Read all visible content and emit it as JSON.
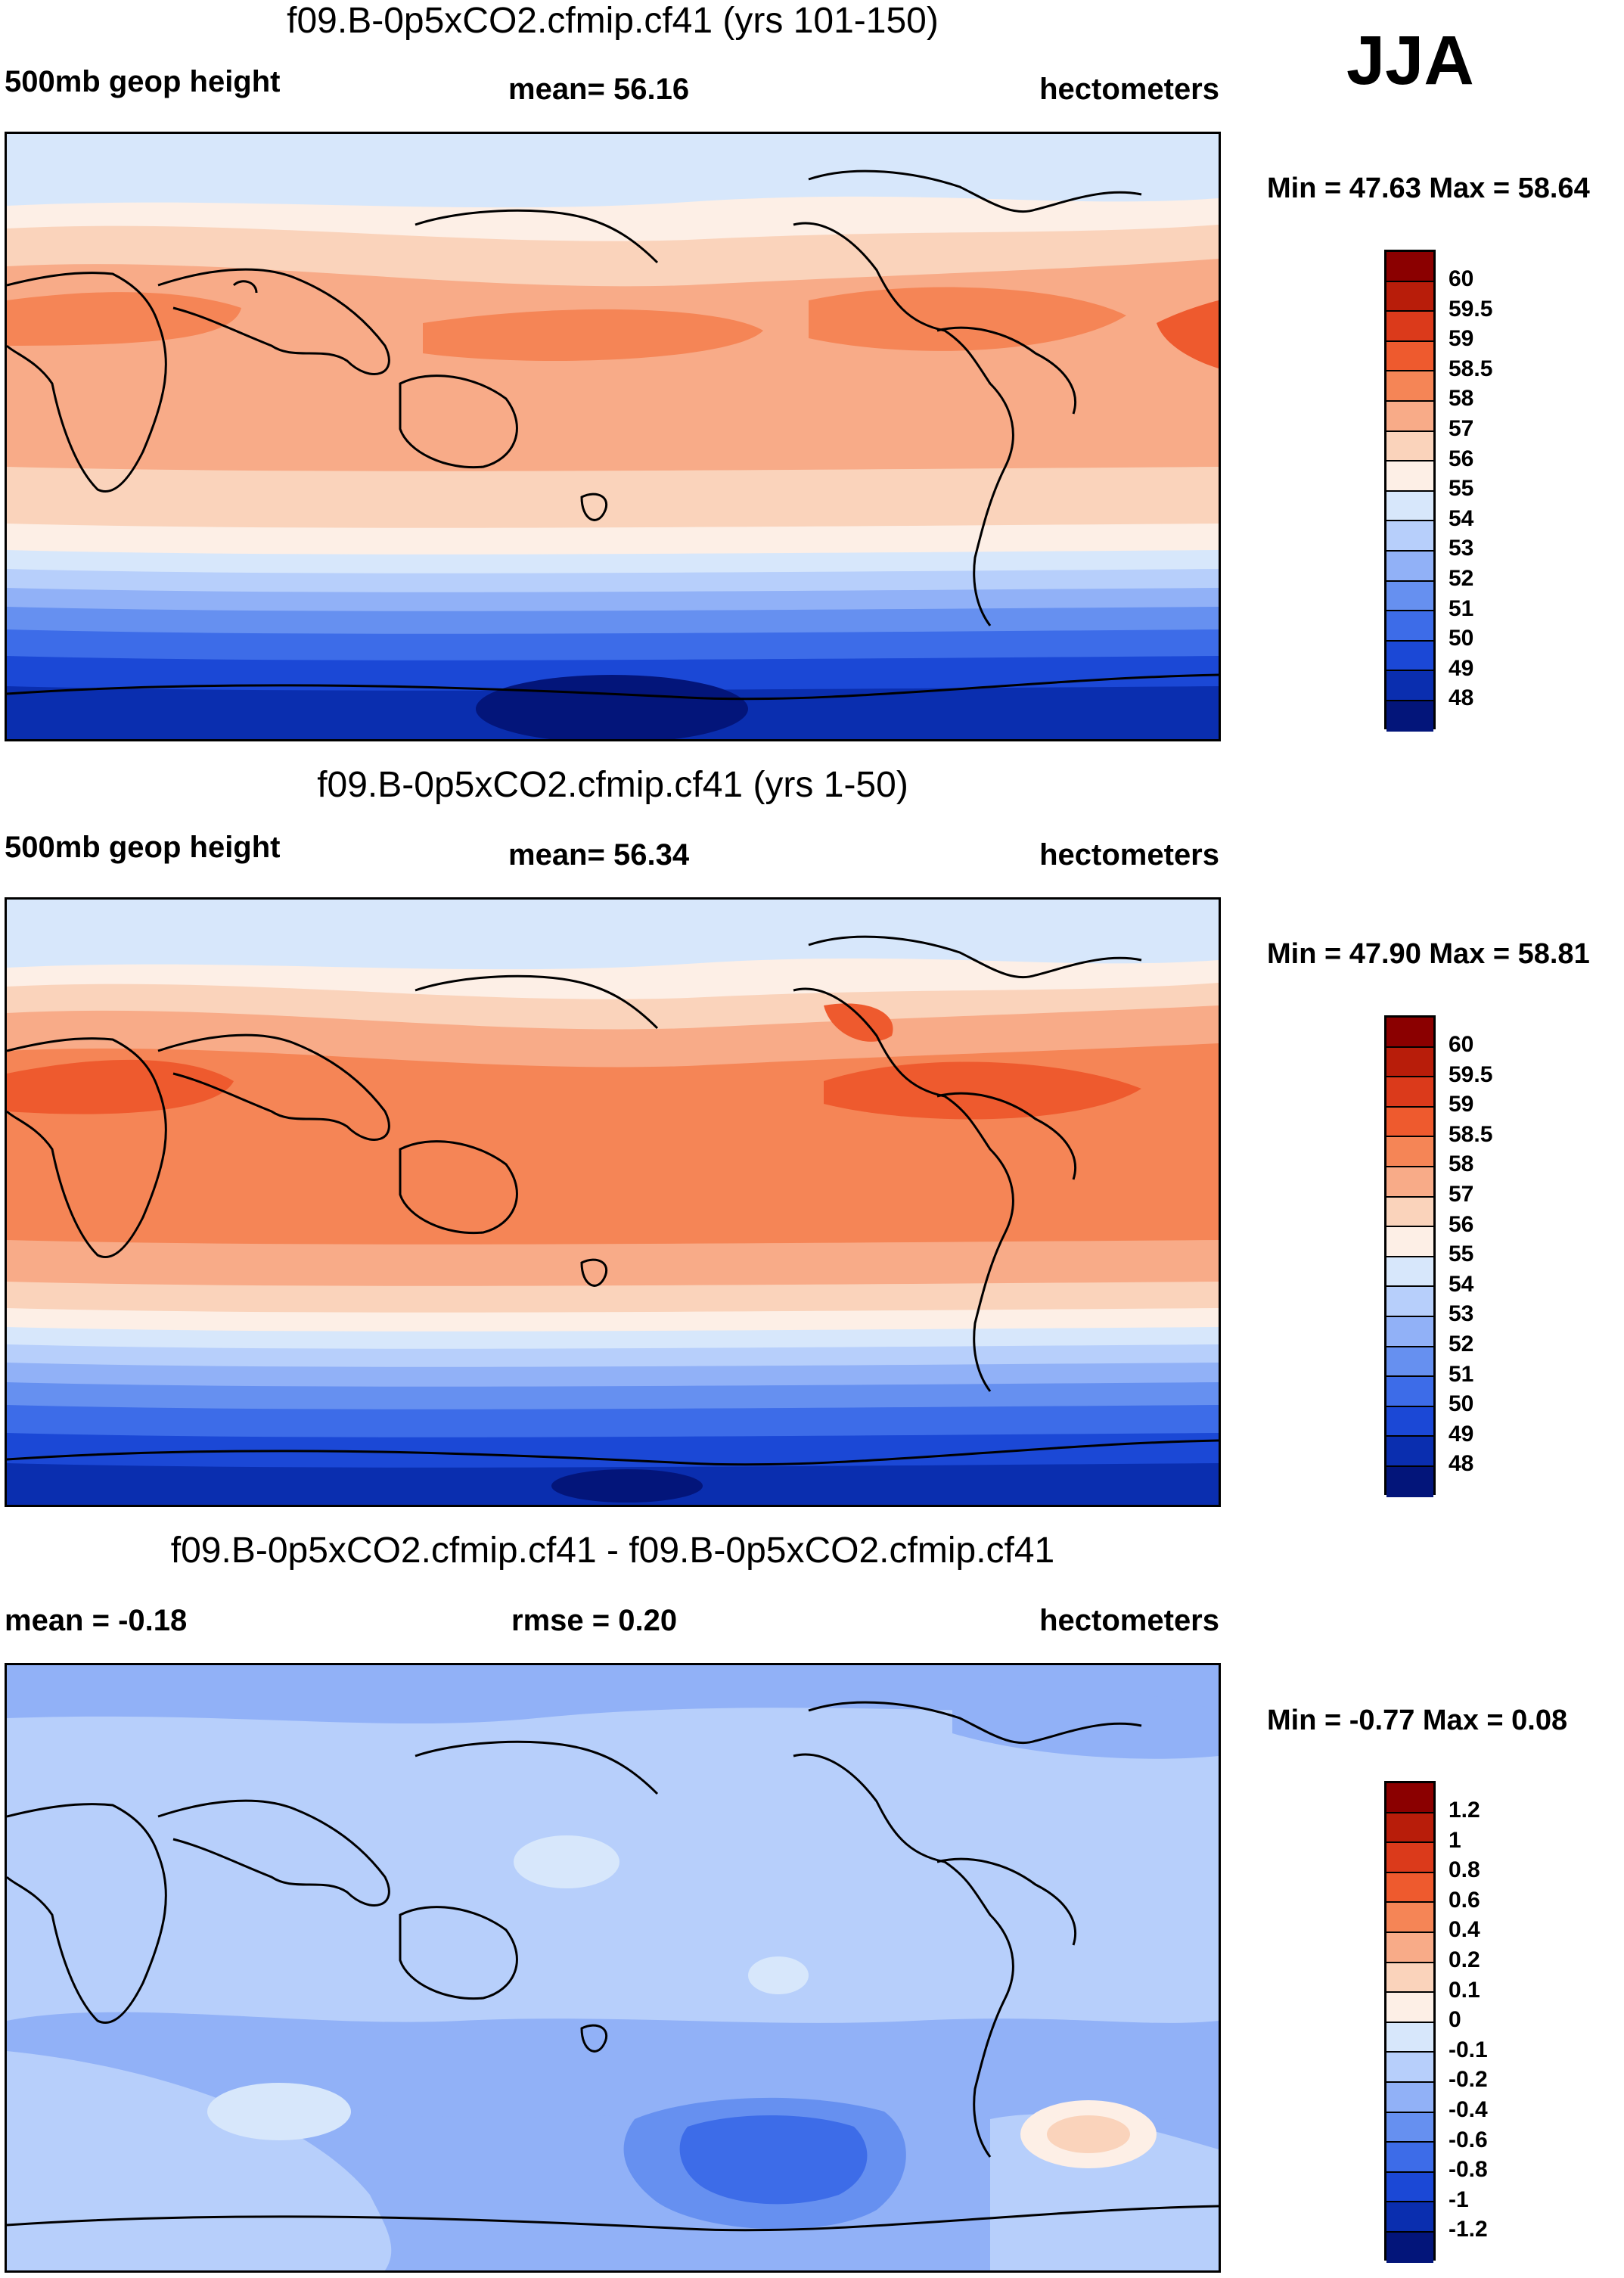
{
  "season": "JJA",
  "panels": [
    {
      "title": "f09.B-0p5xCO2.cfmip.cf41 (yrs 101-150)",
      "left_label": "500mb geop height",
      "center_label": "mean=  56.16",
      "right_label": "hectometers",
      "minmax": "Min =  47.63 Max =  58.64",
      "levels": [
        "60",
        "59.5",
        "59",
        "58.5",
        "58",
        "57",
        "56",
        "55",
        "54",
        "53",
        "52",
        "51",
        "50",
        "49",
        "48"
      ],
      "colors": [
        "#8b0000",
        "#b81d0a",
        "#db3a1b",
        "#ee5a2e",
        "#f58556",
        "#f8ab88",
        "#fad3bb",
        "#fdefe6",
        "#d7e7fb",
        "#b7cffb",
        "#91b1f7",
        "#6690f0",
        "#3d6ce8",
        "#1b48d6",
        "#0a2eaf",
        "#03157a"
      ]
    },
    {
      "title": "f09.B-0p5xCO2.cfmip.cf41 (yrs 1-50)",
      "left_label": "500mb geop height",
      "center_label": "mean=  56.34",
      "right_label": "hectometers",
      "minmax": "Min =  47.90 Max =  58.81",
      "levels": [
        "60",
        "59.5",
        "59",
        "58.5",
        "58",
        "57",
        "56",
        "55",
        "54",
        "53",
        "52",
        "51",
        "50",
        "49",
        "48"
      ],
      "colors": [
        "#8b0000",
        "#b81d0a",
        "#db3a1b",
        "#ee5a2e",
        "#f58556",
        "#f8ab88",
        "#fad3bb",
        "#fdefe6",
        "#d7e7fb",
        "#b7cffb",
        "#91b1f7",
        "#6690f0",
        "#3d6ce8",
        "#1b48d6",
        "#0a2eaf",
        "#03157a"
      ]
    },
    {
      "title": "f09.B-0p5xCO2.cfmip.cf41 - f09.B-0p5xCO2.cfmip.cf41",
      "left_label": "mean =  -0.18",
      "center_label": "rmse =   0.20",
      "right_label": "hectometers",
      "minmax": "Min =  -0.77 Max =   0.08",
      "levels": [
        "1.2",
        "1",
        "0.8",
        "0.6",
        "0.4",
        "0.2",
        "0.1",
        "0",
        "-0.1",
        "-0.2",
        "-0.4",
        "-0.6",
        "-0.8",
        "-1",
        "-1.2"
      ],
      "colors": [
        "#8b0000",
        "#b81d0a",
        "#db3a1b",
        "#ee5a2e",
        "#f58556",
        "#f8ab88",
        "#fad3bb",
        "#fdefe6",
        "#d7e7fb",
        "#b7cffb",
        "#91b1f7",
        "#6690f0",
        "#3d6ce8",
        "#1b48d6",
        "#0a2eaf",
        "#03157a"
      ]
    }
  ]
}
